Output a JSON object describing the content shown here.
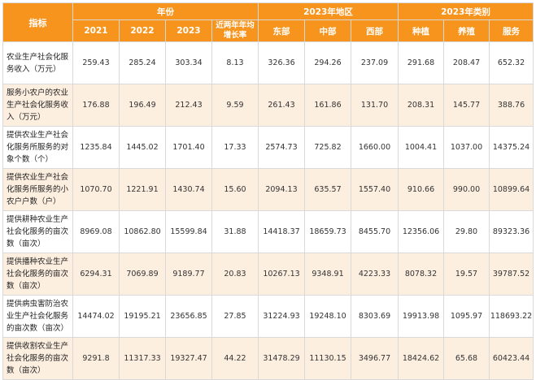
{
  "table": {
    "header": {
      "indicator": "指标",
      "group_year": "年份",
      "group_region": "2023年地区",
      "group_category": "2023年类别",
      "year_cols": [
        "2021",
        "2022",
        "2023",
        "近两年年均增长率"
      ],
      "region_cols": [
        "东部",
        "中部",
        "西部"
      ],
      "category_cols": [
        "种植",
        "养殖",
        "服务"
      ]
    },
    "rows": [
      {
        "label": "农业生产社会化服务收入（万元）",
        "values": [
          "259.43",
          "285.24",
          "303.34",
          "8.13",
          "326.36",
          "294.26",
          "237.09",
          "291.68",
          "208.47",
          "652.32"
        ]
      },
      {
        "label": "服务小农户的农业生产社会化服务收入（万元）",
        "values": [
          "176.88",
          "196.49",
          "212.43",
          "9.59",
          "261.43",
          "161.86",
          "131.70",
          "208.31",
          "145.77",
          "388.76"
        ]
      },
      {
        "label": "提供农业生产社会化服务所服务的对象个数（个）",
        "values": [
          "1235.84",
          "1445.02",
          "1701.40",
          "17.33",
          "2574.73",
          "725.82",
          "1660.00",
          "1004.41",
          "1037.00",
          "14375.24"
        ]
      },
      {
        "label": "提供农业生产社会化服务所服务的小农户户数（户）",
        "values": [
          "1070.70",
          "1221.91",
          "1430.74",
          "15.60",
          "2094.13",
          "635.57",
          "1557.40",
          "910.66",
          "990.00",
          "10899.64"
        ]
      },
      {
        "label": "提供耕种农业生产社会化服务的亩次数（亩次）",
        "values": [
          "8969.08",
          "10862.80",
          "15599.84",
          "31.88",
          "14418.37",
          "18659.73",
          "8455.70",
          "12356.06",
          "29.80",
          "89323.36"
        ]
      },
      {
        "label": "提供播种农业生产社会化服务的亩次数（亩次）",
        "values": [
          "6294.31",
          "7069.89",
          "9189.77",
          "20.83",
          "10267.13",
          "9348.91",
          "4223.33",
          "8078.32",
          "19.57",
          "39787.52"
        ]
      },
      {
        "label": "提供病虫害防治农业生产社会化服务的亩次数（亩次）",
        "values": [
          "14474.02",
          "19195.21",
          "23656.85",
          "27.85",
          "31224.93",
          "19248.10",
          "8303.69",
          "19913.98",
          "1095.97",
          "118693.22"
        ]
      },
      {
        "label": "提供收割农业生产社会化服务的亩次数（亩次）",
        "values": [
          "9291.8",
          "11317.33",
          "19327.47",
          "44.22",
          "31478.29",
          "11130.15",
          "3496.77",
          "18424.62",
          "65.68",
          "60423.44"
        ]
      }
    ]
  }
}
